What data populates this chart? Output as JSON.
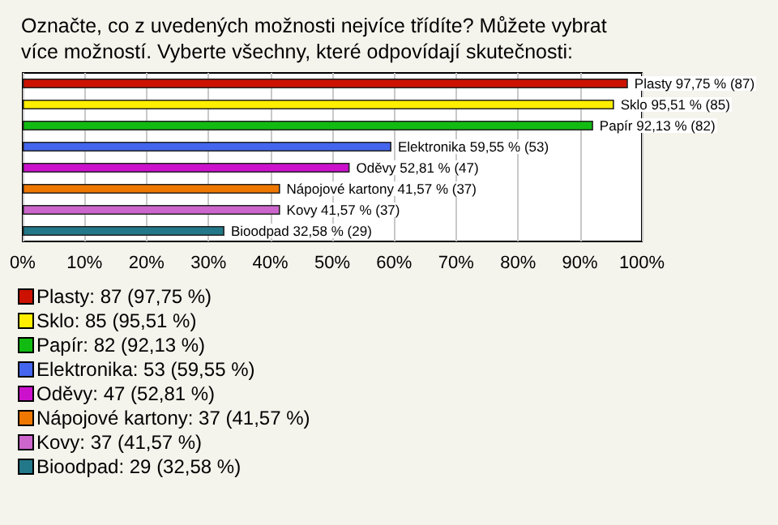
{
  "chart_data": {
    "type": "bar",
    "orientation": "horizontal",
    "stacked": true,
    "title": "Označte, co z uvedených možnosti nejvíce třídíte? Můžete vybrat více možností. Vyberte všechny, které odpovídají skutečnosti:",
    "categories": [
      null,
      null,
      null,
      null,
      null,
      null,
      null,
      null
    ],
    "series": [
      {
        "name": "Plasty: 87 (97,75 %)",
        "color": "#cc1100",
        "values": [
          97.75,
          null,
          null,
          null,
          null,
          null,
          null,
          null
        ],
        "value_labels": [
          "Plasty 97,75 % (87)",
          null,
          null,
          null,
          null,
          null,
          null,
          null
        ]
      },
      {
        "name": "Sklo: 85 (95,51 %)",
        "color": "#ffee00",
        "values": [
          null,
          95.51,
          null,
          null,
          null,
          null,
          null,
          null
        ],
        "value_labels": [
          null,
          "Sklo 95,51 % (85)",
          null,
          null,
          null,
          null,
          null,
          null
        ]
      },
      {
        "name": "Papír: 82 (92,13 %)",
        "color": "#11bb11",
        "values": [
          null,
          null,
          92.13,
          null,
          null,
          null,
          null,
          null
        ],
        "value_labels": [
          null,
          null,
          "Papír 92,13 % (82)",
          null,
          null,
          null,
          null,
          null
        ]
      },
      {
        "name": "Elektronika: 53 (59,55 %)",
        "color": "#4466ee",
        "values": [
          null,
          null,
          null,
          59.55,
          null,
          null,
          null,
          null
        ],
        "value_labels": [
          null,
          null,
          null,
          "Elektronika 59,55 % (53)",
          null,
          null,
          null,
          null
        ]
      },
      {
        "name": "Oděvy: 47 (52,81 %)",
        "color": "#cc11cc",
        "values": [
          null,
          null,
          null,
          null,
          52.81,
          null,
          null,
          null
        ],
        "value_labels": [
          null,
          null,
          null,
          null,
          "Oděvy 52,81 % (47)",
          null,
          null,
          null
        ]
      },
      {
        "name": "Nápojové kartony: 37 (41,57 %)",
        "color": "#ee7700",
        "values": [
          null,
          null,
          null,
          null,
          null,
          41.57,
          null,
          null
        ],
        "value_labels": [
          null,
          null,
          null,
          null,
          null,
          "Nápojové kartony 41,57 % (37)",
          null,
          null
        ]
      },
      {
        "name": "Kovy: 37 (41,57 %)",
        "color": "#cc66cc",
        "values": [
          null,
          null,
          null,
          null,
          null,
          null,
          41.57,
          null
        ],
        "value_labels": [
          null,
          null,
          null,
          null,
          null,
          null,
          "Kovy 41,57 % (37)",
          null
        ]
      },
      {
        "name": "Bioodpad: 29 (32,58 %)",
        "color": "#227788",
        "values": [
          null,
          null,
          null,
          null,
          null,
          null,
          null,
          32.58
        ],
        "value_labels": [
          null,
          null,
          null,
          null,
          null,
          null,
          null,
          "Bioodpad 32,58 % (29)"
        ]
      }
    ],
    "xlim": [
      0,
      100
    ],
    "xticks": [
      {
        "value": 0,
        "label": "0%"
      },
      {
        "value": 10,
        "label": "10%"
      },
      {
        "value": 20,
        "label": "20%"
      },
      {
        "value": 30,
        "label": "30%"
      },
      {
        "value": 40,
        "label": "40%"
      },
      {
        "value": 50,
        "label": "50%"
      },
      {
        "value": 60,
        "label": "60%"
      },
      {
        "value": 70,
        "label": "70%"
      },
      {
        "value": 80,
        "label": "80%"
      },
      {
        "value": 90,
        "label": "90%"
      },
      {
        "value": 100,
        "label": "100%"
      }
    ],
    "grid": "x",
    "legend": "bottom left",
    "tick_labels": "x"
  }
}
